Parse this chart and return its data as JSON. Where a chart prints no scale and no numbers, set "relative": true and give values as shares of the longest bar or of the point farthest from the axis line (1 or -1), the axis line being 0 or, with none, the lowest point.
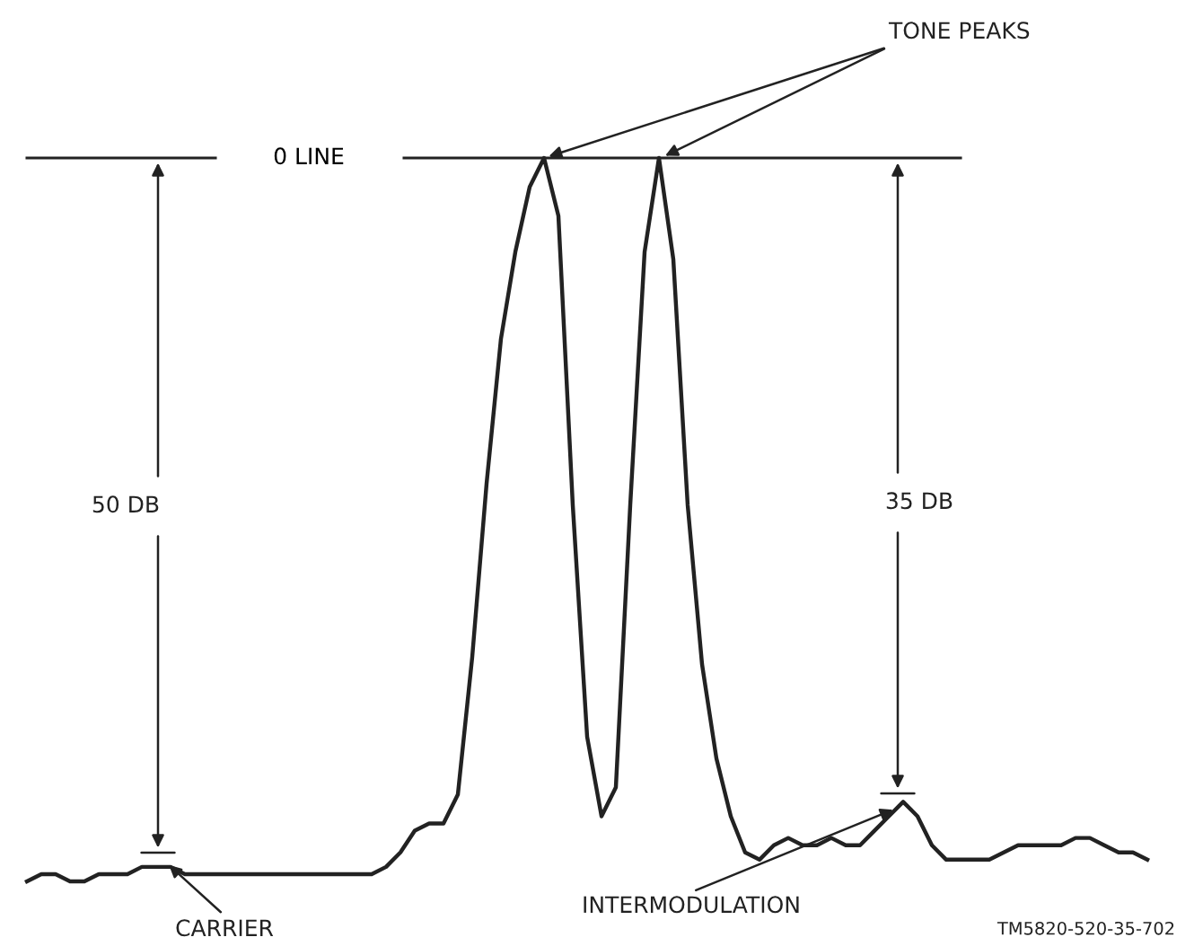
{
  "chart_data": {
    "type": "line",
    "relative": true,
    "color": "#222222",
    "categories": [
      null,
      null,
      null,
      null,
      null,
      null,
      null,
      null,
      null,
      null,
      null,
      null,
      null,
      null,
      null,
      null,
      null,
      null,
      null,
      null,
      null,
      null,
      null,
      null,
      null,
      null,
      null,
      null,
      null,
      null,
      null,
      null,
      null,
      null,
      null,
      null,
      null,
      null,
      null,
      null,
      null,
      null,
      null,
      null,
      null,
      null,
      null,
      null,
      null,
      null,
      null,
      null,
      null,
      null,
      null,
      null,
      null,
      null,
      null,
      null,
      null,
      null,
      null,
      null,
      null,
      null,
      null,
      null,
      null,
      null,
      null,
      null,
      null,
      null,
      null,
      null,
      null,
      null,
      null
    ],
    "values": [
      0.0,
      0.01,
      0.01,
      0.0,
      0.0,
      0.01,
      0.01,
      0.01,
      0.02,
      0.02,
      0.02,
      0.01,
      0.01,
      0.01,
      0.01,
      0.01,
      0.01,
      0.01,
      0.01,
      0.01,
      0.01,
      0.01,
      0.01,
      0.01,
      0.01,
      0.02,
      0.04,
      0.07,
      0.08,
      0.08,
      0.12,
      0.31,
      0.55,
      0.75,
      0.87,
      0.96,
      1.0,
      0.92,
      0.52,
      0.2,
      0.09,
      0.13,
      0.52,
      0.87,
      1.0,
      0.86,
      0.52,
      0.3,
      0.17,
      0.09,
      0.04,
      0.03,
      0.05,
      0.06,
      0.05,
      0.05,
      0.06,
      0.05,
      0.05,
      0.07,
      0.09,
      0.11,
      0.09,
      0.05,
      0.03,
      0.03,
      0.03,
      0.03,
      0.04,
      0.05,
      0.05,
      0.05,
      0.05,
      0.06,
      0.06,
      0.05,
      0.04,
      0.04,
      0.03
    ],
    "ref_lines": [
      {
        "axis": "y",
        "value": 1,
        "label": "0 LINE"
      }
    ],
    "annotations": [
      "TONE PEAKS",
      "50 DB",
      "35 DB",
      "CARRIER",
      "INTERMODULATION",
      "TM5820-520-35-702"
    ]
  }
}
